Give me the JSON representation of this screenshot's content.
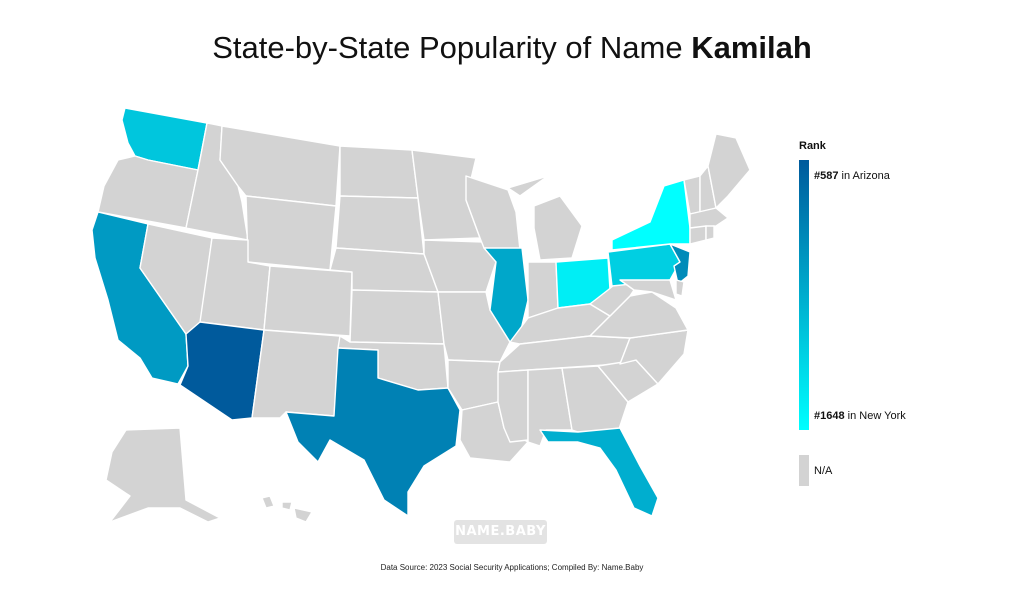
{
  "title": {
    "prefix": "State-by-State Popularity of Name ",
    "name": "Kamilah"
  },
  "legend": {
    "title": "Rank",
    "top_rank": "#587",
    "top_state": " in Arizona",
    "bottom_rank": "#1648",
    "bottom_state": " in New York",
    "na_label": "N/A",
    "color_high": "#005a9c",
    "color_low": "#00ffff",
    "color_na": "#d3d3d3"
  },
  "colored_states": {
    "Arizona": 587,
    "Texas": 840,
    "New Jersey": 900,
    "California": 1000,
    "Illinois": 1080,
    "Florida": 1130,
    "Washington": 1280,
    "Pennsylvania": 1340,
    "Ohio": 1540,
    "New York": 1648
  },
  "watermark": "NAME.BABY",
  "source": "Data Source: 2023 Social Security Applications; Compiled By: Name.Baby"
}
